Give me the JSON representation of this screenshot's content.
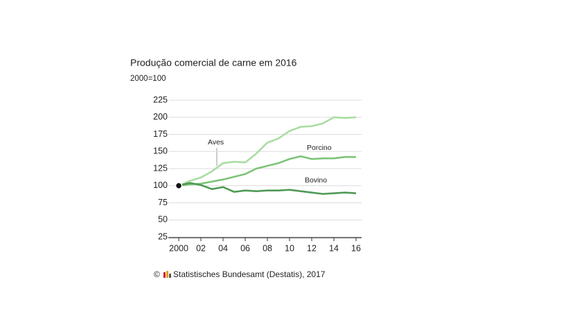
{
  "chart_data": {
    "type": "line",
    "title": "Produção comercial de carne em 2016",
    "subtitle": "2000=100",
    "copyright": "©",
    "source": "Statistisches Bundesamt (Destatis), 2017",
    "annotations": [
      "Aves",
      "Porcino",
      "Bovino"
    ],
    "x": [
      2000,
      2001,
      2002,
      2003,
      2004,
      2005,
      2006,
      2007,
      2008,
      2009,
      2010,
      2011,
      2012,
      2013,
      2014,
      2015,
      2016
    ],
    "series": [
      {
        "name": "Aves",
        "color": "#a9dca2",
        "values": [
          100,
          107,
          112,
          121,
          133,
          135,
          134,
          147,
          163,
          169,
          180,
          186,
          187,
          191,
          200,
          199,
          200
        ]
      },
      {
        "name": "Porcino",
        "color": "#7cc477",
        "values": [
          100,
          102,
          103,
          106,
          109,
          113,
          117,
          125,
          129,
          133,
          139,
          143,
          139,
          140,
          140,
          142,
          142
        ]
      },
      {
        "name": "Bovino",
        "color": "#4f9a55",
        "values": [
          100,
          104,
          101,
          95,
          98,
          91,
          93,
          92,
          93,
          93,
          94,
          92,
          90,
          88,
          89,
          90,
          89
        ]
      }
    ],
    "xlim": [
      1999.06,
      2016.5
    ],
    "xticks": [
      2000,
      {
        "value": 2002,
        "label": "02"
      },
      {
        "value": 2004,
        "label": "04"
      },
      {
        "value": 2006,
        "label": "06"
      },
      {
        "value": 2008,
        "label": "08"
      },
      {
        "value": 2010,
        "label": "10"
      },
      {
        "value": 2012,
        "label": "12"
      },
      {
        "value": 2014,
        "label": "14"
      },
      {
        "value": 2016,
        "label": "16"
      }
    ],
    "ylim": [
      25,
      225
    ],
    "yticks": [
      25,
      50,
      75,
      100,
      125,
      150,
      175,
      200,
      225
    ],
    "grid": true
  }
}
